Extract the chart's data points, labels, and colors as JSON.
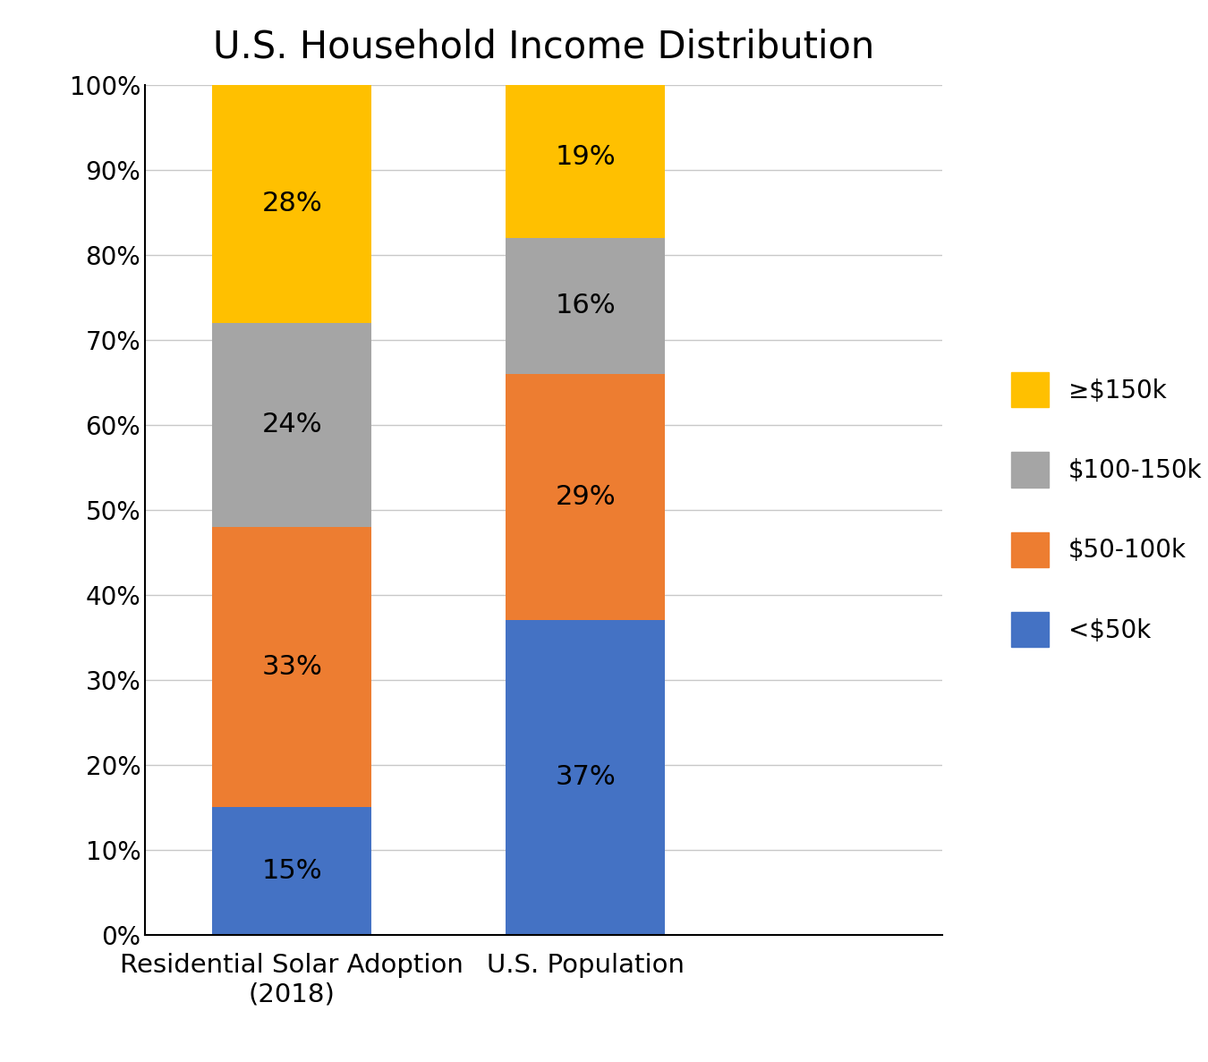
{
  "title": "U.S. Household Income Distribution",
  "categories": [
    "Residential Solar Adoption\n(2018)",
    "U.S. Population"
  ],
  "segments": [
    {
      "label": "<$50k",
      "color": "#4472C4",
      "values": [
        15,
        37
      ]
    },
    {
      "label": "$50-100k",
      "color": "#ED7D31",
      "values": [
        33,
        29
      ]
    },
    {
      "label": "$100-150k",
      "color": "#A5A5A5",
      "values": [
        24,
        16
      ]
    },
    {
      "label": "≥$150k",
      "color": "#FFC000",
      "values": [
        28,
        19
      ]
    }
  ],
  "ylim": [
    0,
    100
  ],
  "yticks": [
    0,
    10,
    20,
    30,
    40,
    50,
    60,
    70,
    80,
    90,
    100
  ],
  "ytick_labels": [
    "0%",
    "10%",
    "20%",
    "30%",
    "40%",
    "50%",
    "60%",
    "70%",
    "80%",
    "90%",
    "100%"
  ],
  "title_fontsize": 30,
  "tick_fontsize": 20,
  "label_fontsize": 21,
  "annot_fontsize": 22,
  "legend_fontsize": 20,
  "bar_width": 0.38,
  "bar_positions": [
    0.35,
    1.05
  ],
  "xlim": [
    0.0,
    1.9
  ],
  "background_color": "#FFFFFF",
  "grid_color": "#C8C8C8"
}
